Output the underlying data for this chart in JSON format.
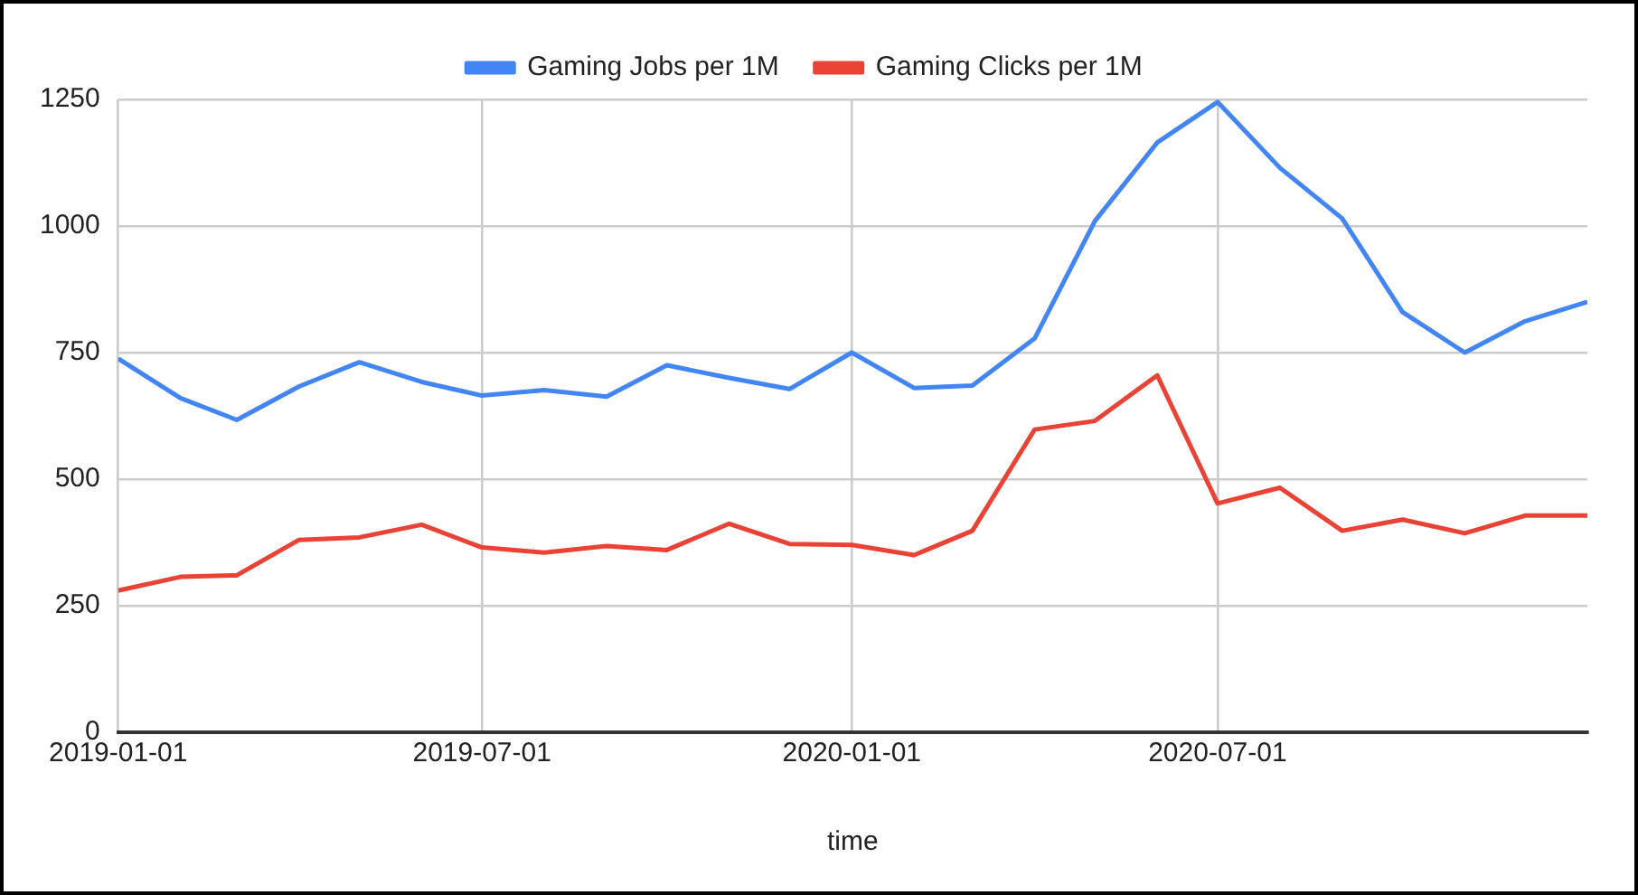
{
  "chart_data": {
    "type": "line",
    "xlabel": "time",
    "x": [
      "2019-01-01",
      "2019-02-01",
      "2019-03-01",
      "2019-04-01",
      "2019-05-01",
      "2019-06-01",
      "2019-07-01",
      "2019-08-01",
      "2019-09-01",
      "2019-10-01",
      "2019-11-01",
      "2019-12-01",
      "2020-01-01",
      "2020-02-01",
      "2020-03-01",
      "2020-04-01",
      "2020-05-01",
      "2020-06-01",
      "2020-07-01",
      "2020-08-01",
      "2020-09-01",
      "2020-10-01",
      "2020-11-01",
      "2020-12-01",
      "2021-01-01"
    ],
    "series": [
      {
        "name": "Gaming Jobs per 1M",
        "color": "#4285f4",
        "values": [
          738,
          660,
          617,
          683,
          731,
          692,
          665,
          676,
          663,
          725,
          700,
          678,
          750,
          680,
          685,
          778,
          1010,
          1165,
          1245,
          1115,
          1015,
          830,
          750,
          812,
          850
        ]
      },
      {
        "name": "Gaming Clicks per 1M",
        "color": "#ea4335",
        "values": [
          280,
          307,
          310,
          380,
          385,
          410,
          365,
          355,
          368,
          360,
          412,
          372,
          370,
          350,
          398,
          598,
          615,
          705,
          452,
          483,
          398,
          420,
          393,
          428,
          428
        ]
      }
    ],
    "xlim": [
      "2019-01-01",
      "2021-01-01"
    ],
    "xticks": [
      "2019-01-01",
      "2019-07-01",
      "2020-01-01",
      "2020-07-01"
    ],
    "ylim": [
      0,
      1250
    ],
    "yticks": [
      0,
      250,
      500,
      750,
      1000,
      1250
    ],
    "grid": true,
    "legend": "top",
    "marker": "none",
    "line_style": "solid"
  }
}
